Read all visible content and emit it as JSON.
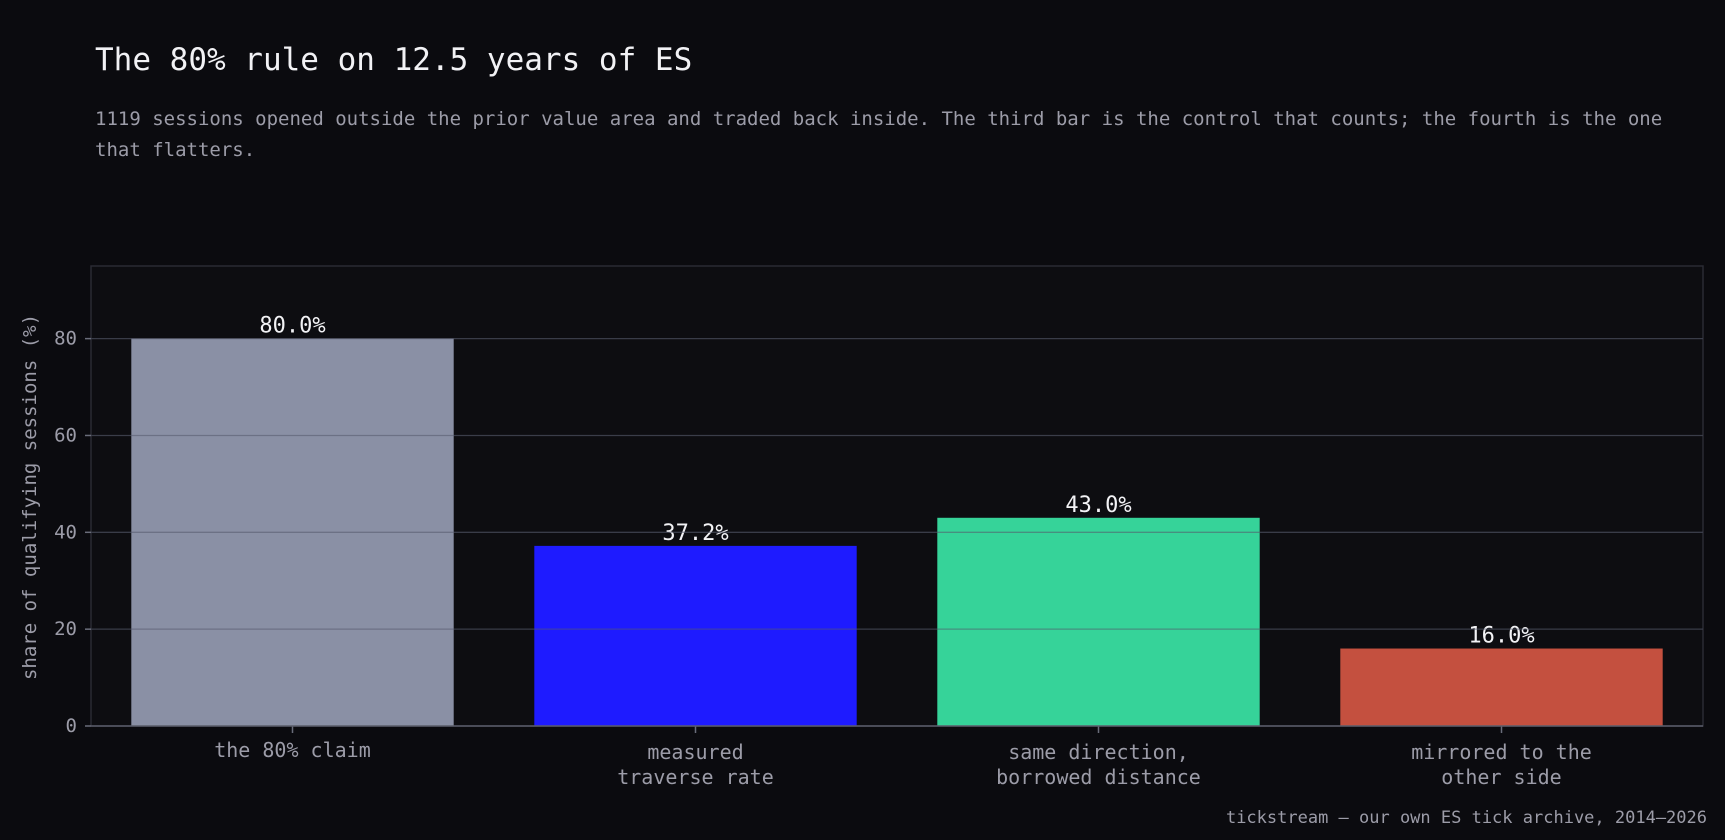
{
  "header": {
    "title": "The 80% rule on 12.5 years of ES",
    "subtitle": "1119 sessions opened outside the prior value area and traded back inside. The third bar is the control that counts; the fourth is the one that flatters."
  },
  "footer": {
    "source": "tickstream — our own ES tick archive, 2014–2026"
  },
  "colors": {
    "background": "#0b0b0f",
    "plot_background": "#0d0d11",
    "grid": "#55596b",
    "axis_text": "#9c9ca8",
    "value_label": "#f2f2f5"
  },
  "chart_data": {
    "type": "bar",
    "categories": [
      [
        "the 80% claim"
      ],
      [
        "measured",
        "traverse rate"
      ],
      [
        "same direction,",
        "borrowed distance"
      ],
      [
        "mirrored to the",
        "other side"
      ]
    ],
    "values": [
      80.0,
      37.2,
      43.0,
      16.0
    ],
    "value_labels": [
      "80.0%",
      "37.2%",
      "43.0%",
      "16.0%"
    ],
    "bar_colors": [
      "#8a90a5",
      "#1e1bff",
      "#36d399",
      "#c4503f"
    ],
    "ylabel": "share of qualifying sessions (%)",
    "xlabel": "",
    "ylim": [
      0,
      95
    ],
    "yticks": [
      0,
      20,
      40,
      60,
      80
    ],
    "grid": true
  }
}
